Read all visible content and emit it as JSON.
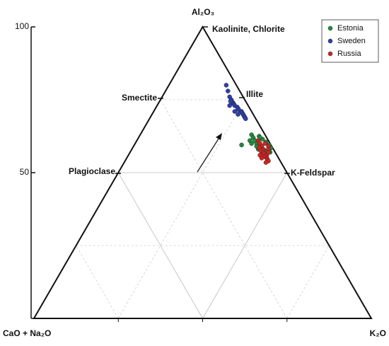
{
  "chart_data": {
    "type": "ternary",
    "top_label": "Al₂O₃",
    "left_label": "CaO + Na₂O",
    "right_label": "K₂O",
    "ylim": [
      0,
      100
    ],
    "yticks": [
      50,
      100
    ],
    "ternary_ticks": [
      25,
      50,
      75
    ],
    "annotations": [
      "Kaolinite, Chlorite",
      "Smectite",
      "Illite",
      "Plagioclase",
      "K-Feldspar"
    ],
    "legend": "upper right",
    "series": [
      {
        "name": "Estonia",
        "color": "#1e8c3a",
        "values": [
          63,
          62,
          62.5,
          61,
          61.5,
          60,
          60.5,
          59,
          59.5,
          58,
          58.5,
          57,
          61,
          60,
          59,
          58,
          62,
          57.5,
          59.5
        ],
        "x": [
          33,
          34,
          35.5,
          35,
          37,
          36,
          38.5,
          38,
          40,
          39,
          41,
          41.5,
          33.5,
          34.5,
          36.5,
          37.5,
          36,
          40,
          31.8
        ]
      },
      {
        "name": "Sweden",
        "color": "#2b3fb2",
        "values": [
          80,
          78,
          76,
          75,
          74,
          73.5,
          73,
          72.5,
          72,
          71.5,
          71,
          70.5,
          70,
          69.5,
          69,
          74.5,
          73,
          71,
          70,
          68.5
        ],
        "x": [
          17,
          18.5,
          20,
          21,
          22,
          22.5,
          23,
          24,
          24.5,
          25,
          26,
          26.5,
          27,
          27.5,
          28,
          21,
          21.5,
          24,
          25.5,
          28.5
        ]
      },
      {
        "name": "Russia",
        "color": "#d62222",
        "values": [
          61,
          60,
          59,
          58.5,
          58,
          57.5,
          57,
          56.5,
          56,
          55.5,
          55,
          54.5,
          54,
          53.5,
          60,
          59,
          58,
          57,
          56,
          55
        ],
        "x": [
          36,
          37,
          38,
          37.5,
          39,
          38.5,
          39.5,
          40,
          41,
          40.5,
          41.5,
          42,
          42.5,
          42,
          38.5,
          40,
          40.5,
          41,
          39,
          40
        ]
      }
    ]
  }
}
